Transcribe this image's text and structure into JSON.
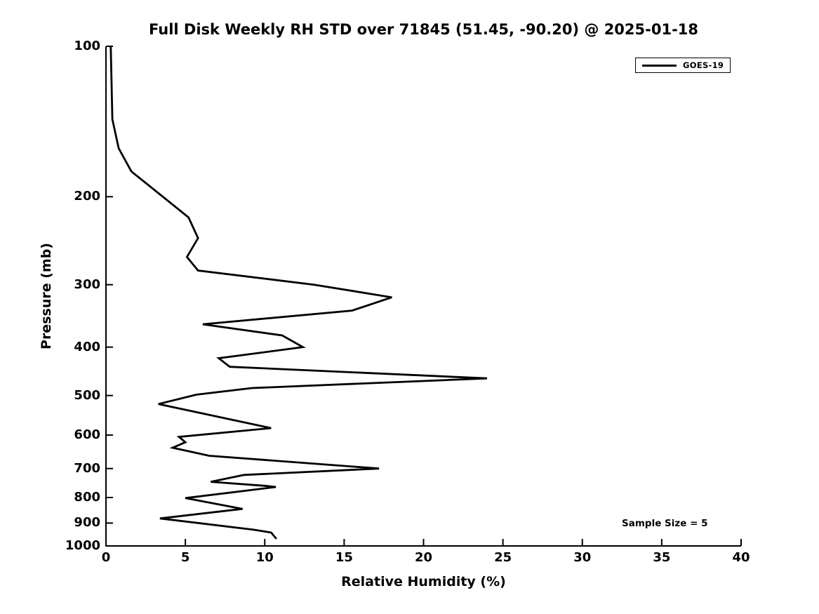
{
  "title": "Full Disk Weekly RH STD over 71845 (51.45, -90.20) @ 2025-01-18",
  "axes": {
    "x": {
      "label": "Relative Humidity (%)",
      "ticks": [
        0,
        5,
        10,
        15,
        20,
        25,
        30,
        35,
        40
      ],
      "range": [
        0,
        40
      ]
    },
    "y": {
      "label": "Pressure (mb)",
      "ticks": [
        100,
        200,
        300,
        400,
        500,
        600,
        700,
        800,
        900,
        1000
      ],
      "range": [
        100,
        1000
      ],
      "scale": "log",
      "inverted": true
    }
  },
  "legend": {
    "items": [
      {
        "label": "GOES-19",
        "color": "#000000",
        "marker": "line"
      }
    ]
  },
  "annotation": {
    "text": "Sample Size = 5"
  },
  "colors": {
    "line": "#000000",
    "text": "#000000",
    "background": "#ffffff",
    "spine": "#000000"
  },
  "chart_data": {
    "type": "line",
    "title": "Full Disk Weekly RH STD over 71845 (51.45, -90.20) @ 2025-01-18",
    "xlabel": "Relative Humidity (%)",
    "ylabel": "Pressure (mb)",
    "xlim": [
      0,
      40
    ],
    "ylim": [
      100,
      1000
    ],
    "yscale": "log",
    "y_inverted": true,
    "grid": false,
    "legend_position": "upper right",
    "series": [
      {
        "name": "GOES-19",
        "color": "#000000",
        "points_format": [
          "rh_percent",
          "pressure_mb"
        ],
        "points": [
          [
            0.3,
            100
          ],
          [
            0.4,
            140
          ],
          [
            0.8,
            160
          ],
          [
            1.6,
            178
          ],
          [
            5.2,
            220
          ],
          [
            5.8,
            242
          ],
          [
            5.1,
            264
          ],
          [
            5.8,
            281
          ],
          [
            13.1,
            300
          ],
          [
            18.0,
            318
          ],
          [
            15.5,
            338
          ],
          [
            6.1,
            360
          ],
          [
            11.1,
            379
          ],
          [
            12.4,
            400
          ],
          [
            7.1,
            421
          ],
          [
            7.8,
            438
          ],
          [
            24.0,
            462
          ],
          [
            9.2,
            483
          ],
          [
            5.7,
            498
          ],
          [
            3.3,
            520
          ],
          [
            10.4,
            581
          ],
          [
            4.6,
            605
          ],
          [
            5.0,
            620
          ],
          [
            4.2,
            636
          ],
          [
            6.5,
            660
          ],
          [
            17.2,
            700
          ],
          [
            8.7,
            721
          ],
          [
            6.6,
            744
          ],
          [
            10.0,
            758
          ],
          [
            10.7,
            762
          ],
          [
            5.0,
            802
          ],
          [
            8.6,
            843
          ],
          [
            3.4,
            881
          ],
          [
            9.3,
            928
          ],
          [
            10.4,
            940
          ],
          [
            10.7,
            965
          ]
        ]
      }
    ]
  }
}
